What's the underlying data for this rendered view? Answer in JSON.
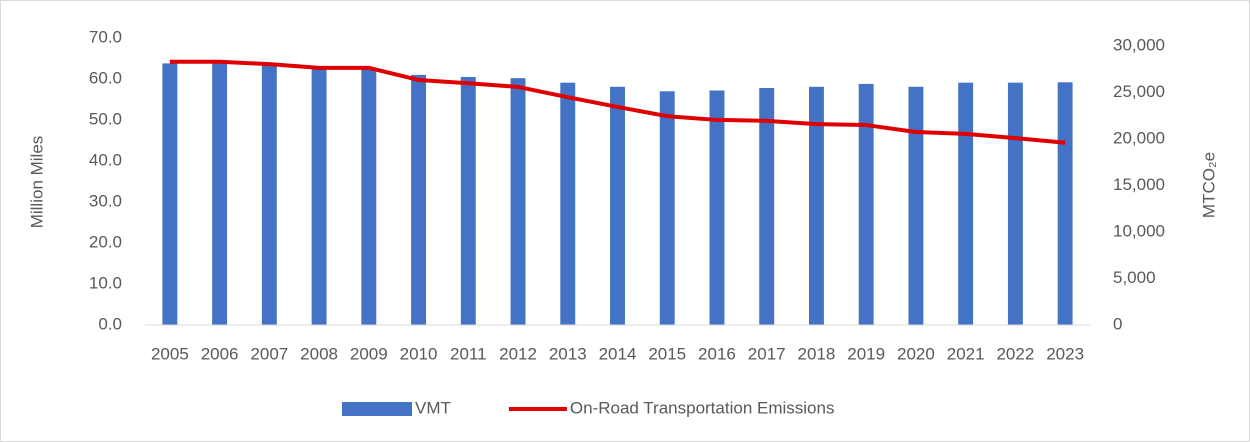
{
  "chart_data": {
    "type": "combo",
    "y_label": "Million Miles",
    "y2_label": "MTCO₂e",
    "categories": [
      "2005",
      "2006",
      "2007",
      "2008",
      "2009",
      "2010",
      "2011",
      "2012",
      "2013",
      "2014",
      "2015",
      "2016",
      "2017",
      "2018",
      "2019",
      "2020",
      "2021",
      "2022",
      "2023"
    ],
    "series": [
      {
        "name": "VMT",
        "type": "bar",
        "color": "#4472c4",
        "values": [
          63.8,
          64.0,
          63.5,
          62.5,
          62.8,
          61.0,
          60.5,
          60.2,
          59.1,
          58.1,
          57.0,
          57.2,
          57.8,
          58.1,
          58.8,
          58.1,
          59.1,
          59.1,
          59.2
        ]
      },
      {
        "name": "On-Road Transportation Emissions",
        "type": "line",
        "axis": "y2",
        "color": "#e00000",
        "values": [
          28300,
          28300,
          28050,
          27650,
          27650,
          26350,
          26000,
          25600,
          24500,
          23450,
          22450,
          22050,
          21950,
          21600,
          21500,
          20750,
          20550,
          20100,
          19600
        ]
      }
    ],
    "ylim": [
      0,
      70
    ],
    "yticks": [
      {
        "value": 0,
        "label": "0.0"
      },
      {
        "value": 10,
        "label": "10.0"
      },
      {
        "value": 20,
        "label": "20.0"
      },
      {
        "value": 30,
        "label": "30.0"
      },
      {
        "value": 40,
        "label": "40.0"
      },
      {
        "value": 50,
        "label": "50.0"
      },
      {
        "value": 60,
        "label": "60.0"
      },
      {
        "value": 70,
        "label": "70.0"
      }
    ],
    "y2lim": [
      0,
      30000
    ],
    "y2ticks": [
      0,
      {
        "value": 5000,
        "label": "5,000"
      },
      {
        "value": 10000,
        "label": "10,000"
      },
      {
        "value": 15000,
        "label": "15,000"
      },
      {
        "value": 20000,
        "label": "20,000"
      },
      {
        "value": 25000,
        "label": "25,000"
      },
      {
        "value": 30000,
        "label": "30,000"
      }
    ],
    "legend": "bottom"
  }
}
